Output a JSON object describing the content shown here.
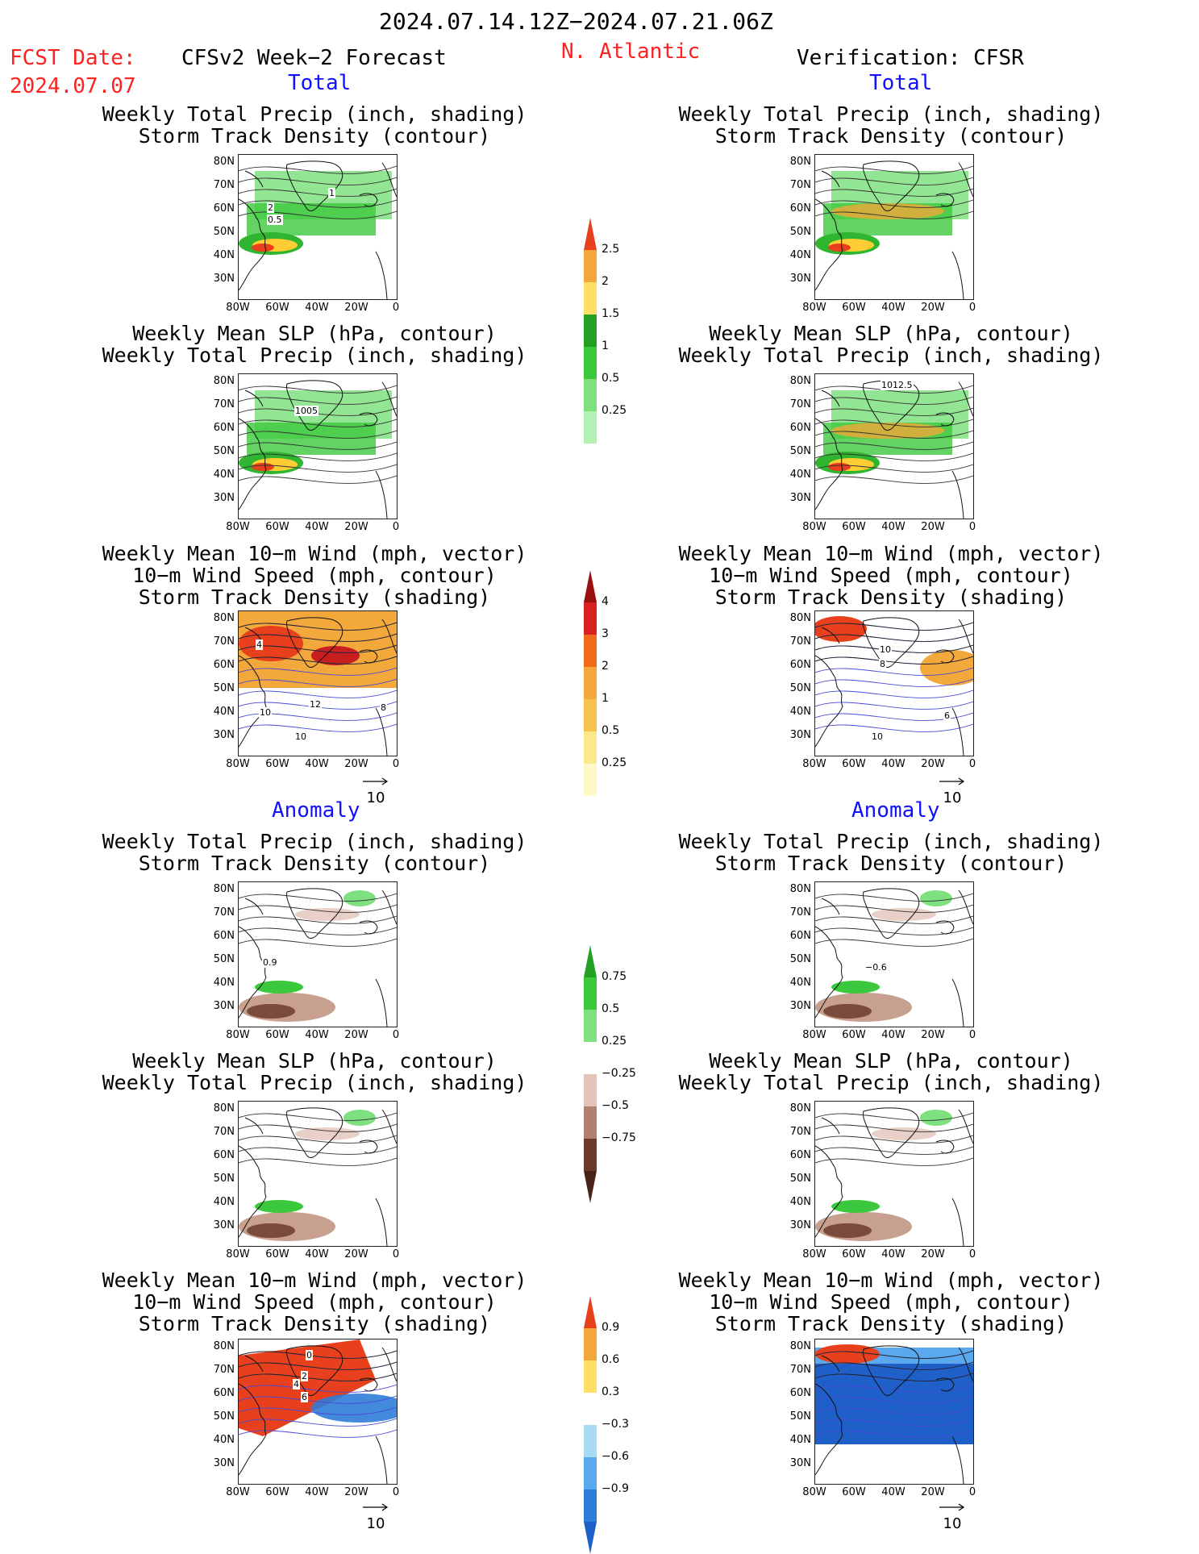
{
  "header": {
    "period": "2024.07.14.12Z−2024.07.21.06Z",
    "fcst_label": "FCST Date:",
    "fcst_date": "2024.07.07",
    "model": "CFSv2 Week−2 Forecast",
    "region": "N. Atlantic",
    "verification": "Verification: CFSR"
  },
  "sections": {
    "total": "Total",
    "anomaly": "Anomaly"
  },
  "titles": {
    "precip_track": [
      "Weekly Total Precip (inch, shading)",
      "Storm Track Density (contour)"
    ],
    "slp_precip": [
      "Weekly Mean SLP (hPa, contour)",
      "Weekly Total Precip (inch, shading)"
    ],
    "wind_track": [
      "Weekly Mean 10−m Wind (mph, vector)",
      "10−m Wind Speed (mph, contour)",
      "Storm Track Density (shading)"
    ]
  },
  "axes": {
    "lat_labels": [
      "80N",
      "70N",
      "60N",
      "50N",
      "40N",
      "30N"
    ],
    "lon_labels": [
      "80W",
      "60W",
      "40W",
      "20W",
      "0"
    ]
  },
  "vector_ref": "10",
  "colorbars": {
    "precip_total": [
      "2.5",
      "2",
      "1.5",
      "1",
      "0.5",
      "0.25"
    ],
    "track_total": [
      "4",
      "3",
      "2",
      "1",
      "0.5",
      "0.25"
    ],
    "precip_anom": [
      "0.75",
      "0.5",
      "0.25",
      "−0.25",
      "−0.5",
      "−0.75"
    ],
    "track_anom": [
      "0.9",
      "0.6",
      "0.3",
      "−0.3",
      "−0.6",
      "−0.9"
    ]
  },
  "contour_labels": {
    "fc_total_track": [
      "1",
      "2",
      "0.5"
    ],
    "fc_total_slp": [
      "1005"
    ],
    "fc_total_wind": [
      "4",
      "12",
      "10",
      "10",
      "8"
    ],
    "vf_total_slp": [
      "1012.5"
    ],
    "vf_total_wind": [
      "10",
      "8",
      "10",
      "6"
    ],
    "fc_anom_track": [
      "0.9"
    ],
    "vf_anom_track": [
      "−0.6"
    ],
    "fc_anom_wind": [
      "0",
      "2",
      "4",
      "6"
    ]
  },
  "colors": {
    "header_red": "#ff2020",
    "section_blue": "#1010ff"
  }
}
